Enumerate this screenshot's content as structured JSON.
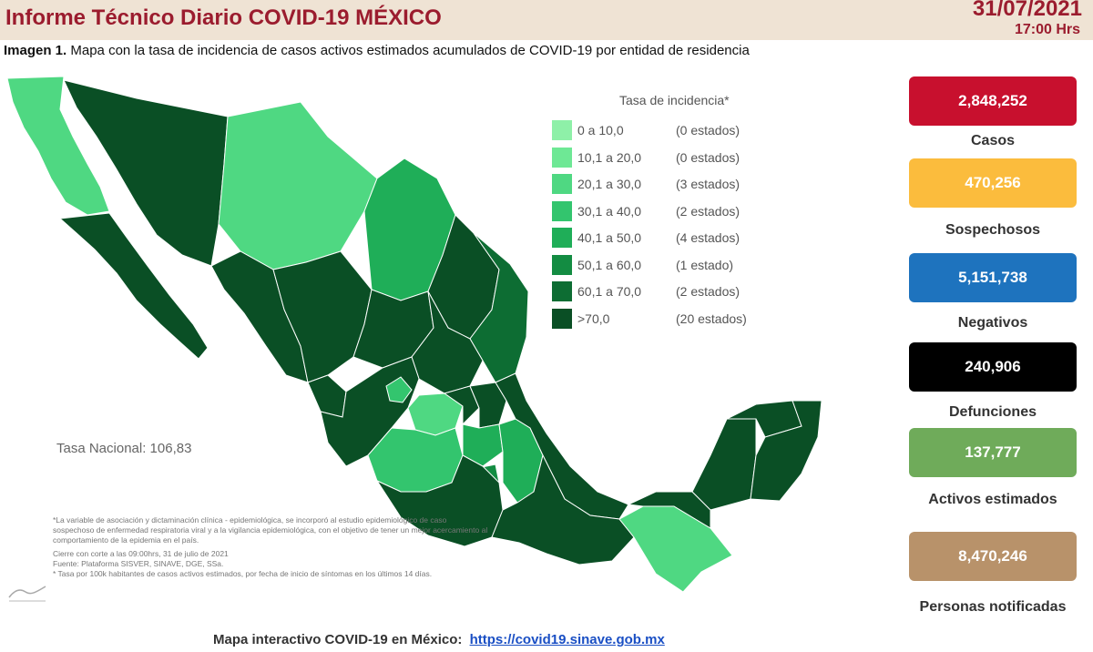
{
  "header": {
    "title": "Informe Técnico Diario COVID-19 MÉXICO",
    "date": "31/07/2021",
    "time": "17:00 Hrs"
  },
  "caption": {
    "prefix": "Imagen 1.",
    "text": "Mapa con la tasa de incidencia de casos activos estimados acumulados de COVID-19 por entidad de residencia"
  },
  "legend": {
    "title": "Tasa de incidencia*",
    "items": [
      {
        "range": "0   a  10,0",
        "count": "(0 estados)",
        "color": "#8ef0a8"
      },
      {
        "range": "10,1  a  20,0",
        "count": "(0 estados)",
        "color": "#6ee895"
      },
      {
        "range": "20,1  a  30,0",
        "count": "(3 estados)",
        "color": "#4fd882"
      },
      {
        "range": "30,1  a  40,0",
        "count": "(2 estados)",
        "color": "#33c56e"
      },
      {
        "range": "40,1  a  50,0",
        "count": "(4 estados)",
        "color": "#1fae58"
      },
      {
        "range": "50,1  a  60,0",
        "count": "(1 estado)",
        "color": "#138c42"
      },
      {
        "range": "60,1  a  70,0",
        "count": "(2 estados)",
        "color": "#0d6d33"
      },
      {
        "range": ">70,0",
        "count": "(20 estados)",
        "color": "#0a4f25"
      }
    ]
  },
  "tasa_nacional": "Tasa Nacional: 106,83",
  "notes": {
    "line1": "*La variable de asociación y dictaminación clínica - epidemiológica, se incorporó al estudio epidemiológico de caso sospechoso de enfermedad respiratoria viral y a la vigilancia epidemiológica, con el objetivo de tener un mejor acercamiento al comportamiento de la epidemia en el país.",
    "line2": "Cierre con corte a las 09:00hrs, 31 de julio de 2021",
    "line3": "Fuente: Plataforma SISVER, SINAVE, DGE, SSa.",
    "line4": "* Tasa por 100k habitantes de casos activos estimados, por fecha de inicio de síntomas en los últimos 14 días."
  },
  "stats": [
    {
      "value": "2,848,252",
      "label": "Casos",
      "bg": "#c8102e",
      "fg": "#ffffff"
    },
    {
      "value": "470,256",
      "label": "Sospechosos",
      "bg": "#fbbc3d",
      "fg": "#ffffff"
    },
    {
      "value": "5,151,738",
      "label": "Negativos",
      "bg": "#1e73be",
      "fg": "#ffffff"
    },
    {
      "value": "240,906",
      "label": "Defunciones",
      "bg": "#000000",
      "fg": "#ffffff"
    },
    {
      "value": "137,777",
      "label": "Activos estimados",
      "bg": "#6fab5a",
      "fg": "#ffffff"
    },
    {
      "value": "8,470,246",
      "label": "Personas notificadas",
      "bg": "#b8926a",
      "fg": "#ffffff"
    }
  ],
  "footer": {
    "label": "Mapa interactivo COVID-19 en México:",
    "link": "https://covid19.sinave.gob.mx"
  }
}
